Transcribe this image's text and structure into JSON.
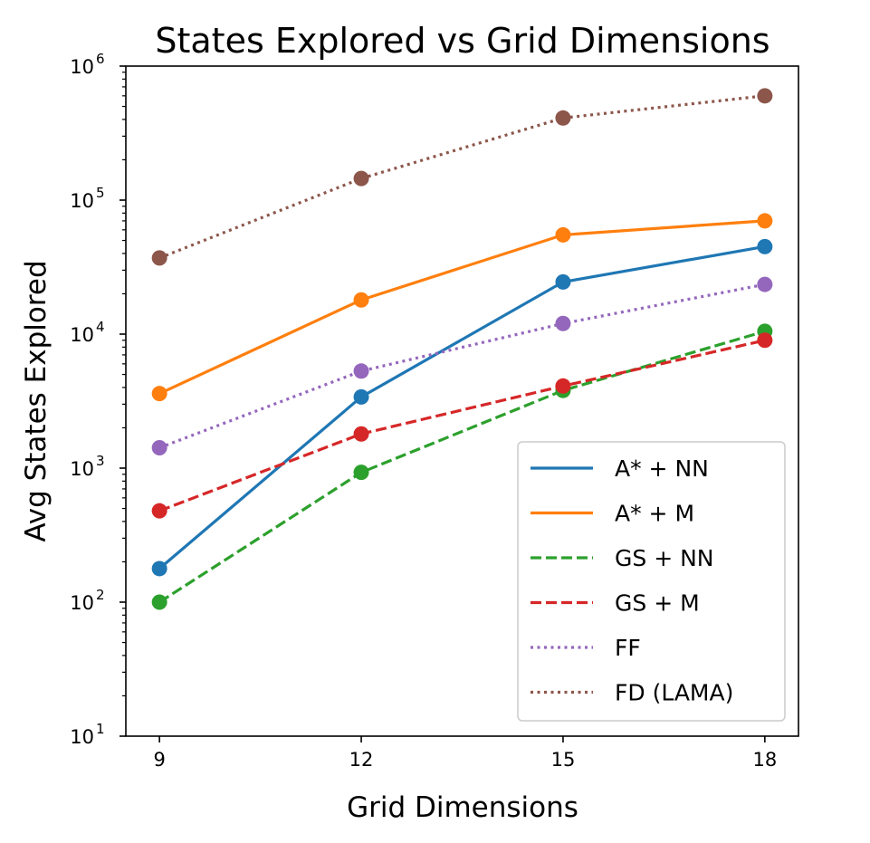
{
  "chart_data": {
    "type": "line",
    "title": "States Explored vs Grid Dimensions",
    "xlabel": "Grid Dimensions",
    "ylabel": "Avg States Explored",
    "yscale": "log",
    "x": [
      9,
      12,
      15,
      18
    ],
    "x_tick_labels": [
      "9",
      "12",
      "15",
      "18"
    ],
    "xlim": [
      8.5,
      18.5
    ],
    "ylim": [
      10,
      1000000
    ],
    "y_tick_exponents": [
      1,
      2,
      3,
      4,
      5,
      6
    ],
    "y_tick_base": "10",
    "legend_position": "lower right",
    "series": [
      {
        "name": "A* + NN",
        "color": "#1f77b4",
        "dash": "solid",
        "values": [
          178,
          3400,
          24500,
          45000
        ]
      },
      {
        "name": "A* + M",
        "color": "#ff7f0e",
        "dash": "solid",
        "values": [
          3600,
          18000,
          55000,
          70000
        ]
      },
      {
        "name": "GS + NN",
        "color": "#2ca02c",
        "dash": "dashed",
        "values": [
          100,
          930,
          3800,
          10500
        ]
      },
      {
        "name": "GS + M",
        "color": "#d62728",
        "dash": "dashed",
        "values": [
          480,
          1800,
          4100,
          9000
        ]
      },
      {
        "name": "FF",
        "color": "#9467bd",
        "dash": "dotted",
        "values": [
          1420,
          5300,
          12000,
          23500
        ]
      },
      {
        "name": "FD (LAMA)",
        "color": "#8c564b",
        "dash": "dotted",
        "values": [
          37000,
          145000,
          410000,
          600000
        ]
      }
    ]
  }
}
